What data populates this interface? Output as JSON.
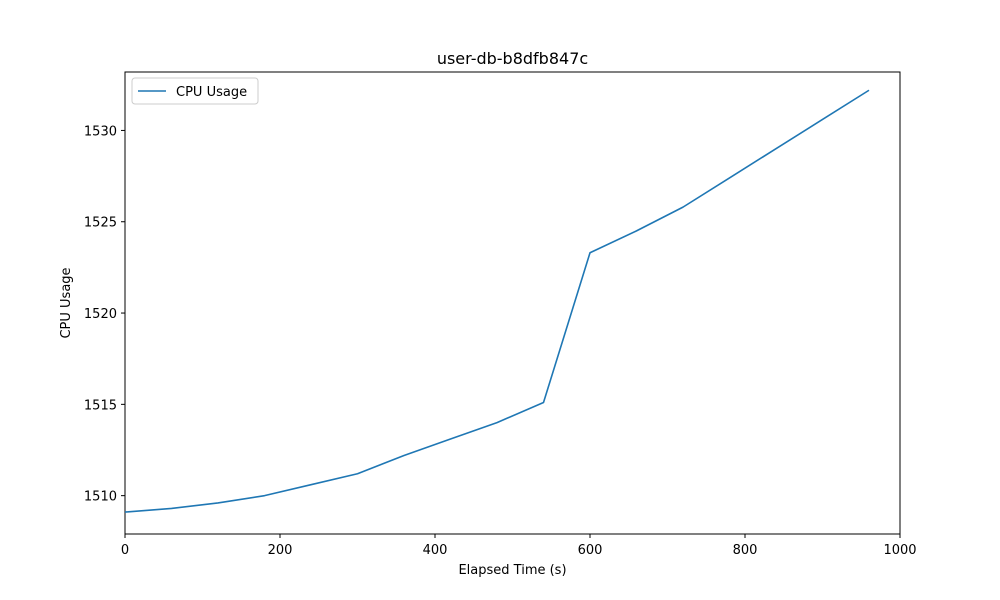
{
  "chart_data": {
    "type": "line",
    "title": "user-db-b8dfb847c",
    "xlabel": "Elapsed Time (s)",
    "ylabel": "CPU Usage",
    "xlim": [
      0,
      1000
    ],
    "ylim": [
      1507.9,
      1533.2
    ],
    "xticks": [
      0,
      200,
      400,
      600,
      800,
      1000
    ],
    "yticks": [
      1510,
      1515,
      1520,
      1525,
      1530
    ],
    "grid": false,
    "legend": {
      "placement": "top-left",
      "entries": [
        "CPU Usage"
      ]
    },
    "series": [
      {
        "name": "CPU Usage",
        "color": "#1f77b4",
        "x": [
          0,
          60,
          120,
          180,
          240,
          300,
          360,
          420,
          480,
          540,
          600,
          660,
          720,
          780,
          840,
          900,
          960
        ],
        "y": [
          1509.1,
          1509.3,
          1509.6,
          1510.0,
          1510.6,
          1511.2,
          1512.2,
          1513.1,
          1514.0,
          1515.1,
          1523.3,
          1524.5,
          1525.8,
          1527.4,
          1529.0,
          1530.6,
          1532.2
        ]
      }
    ]
  }
}
